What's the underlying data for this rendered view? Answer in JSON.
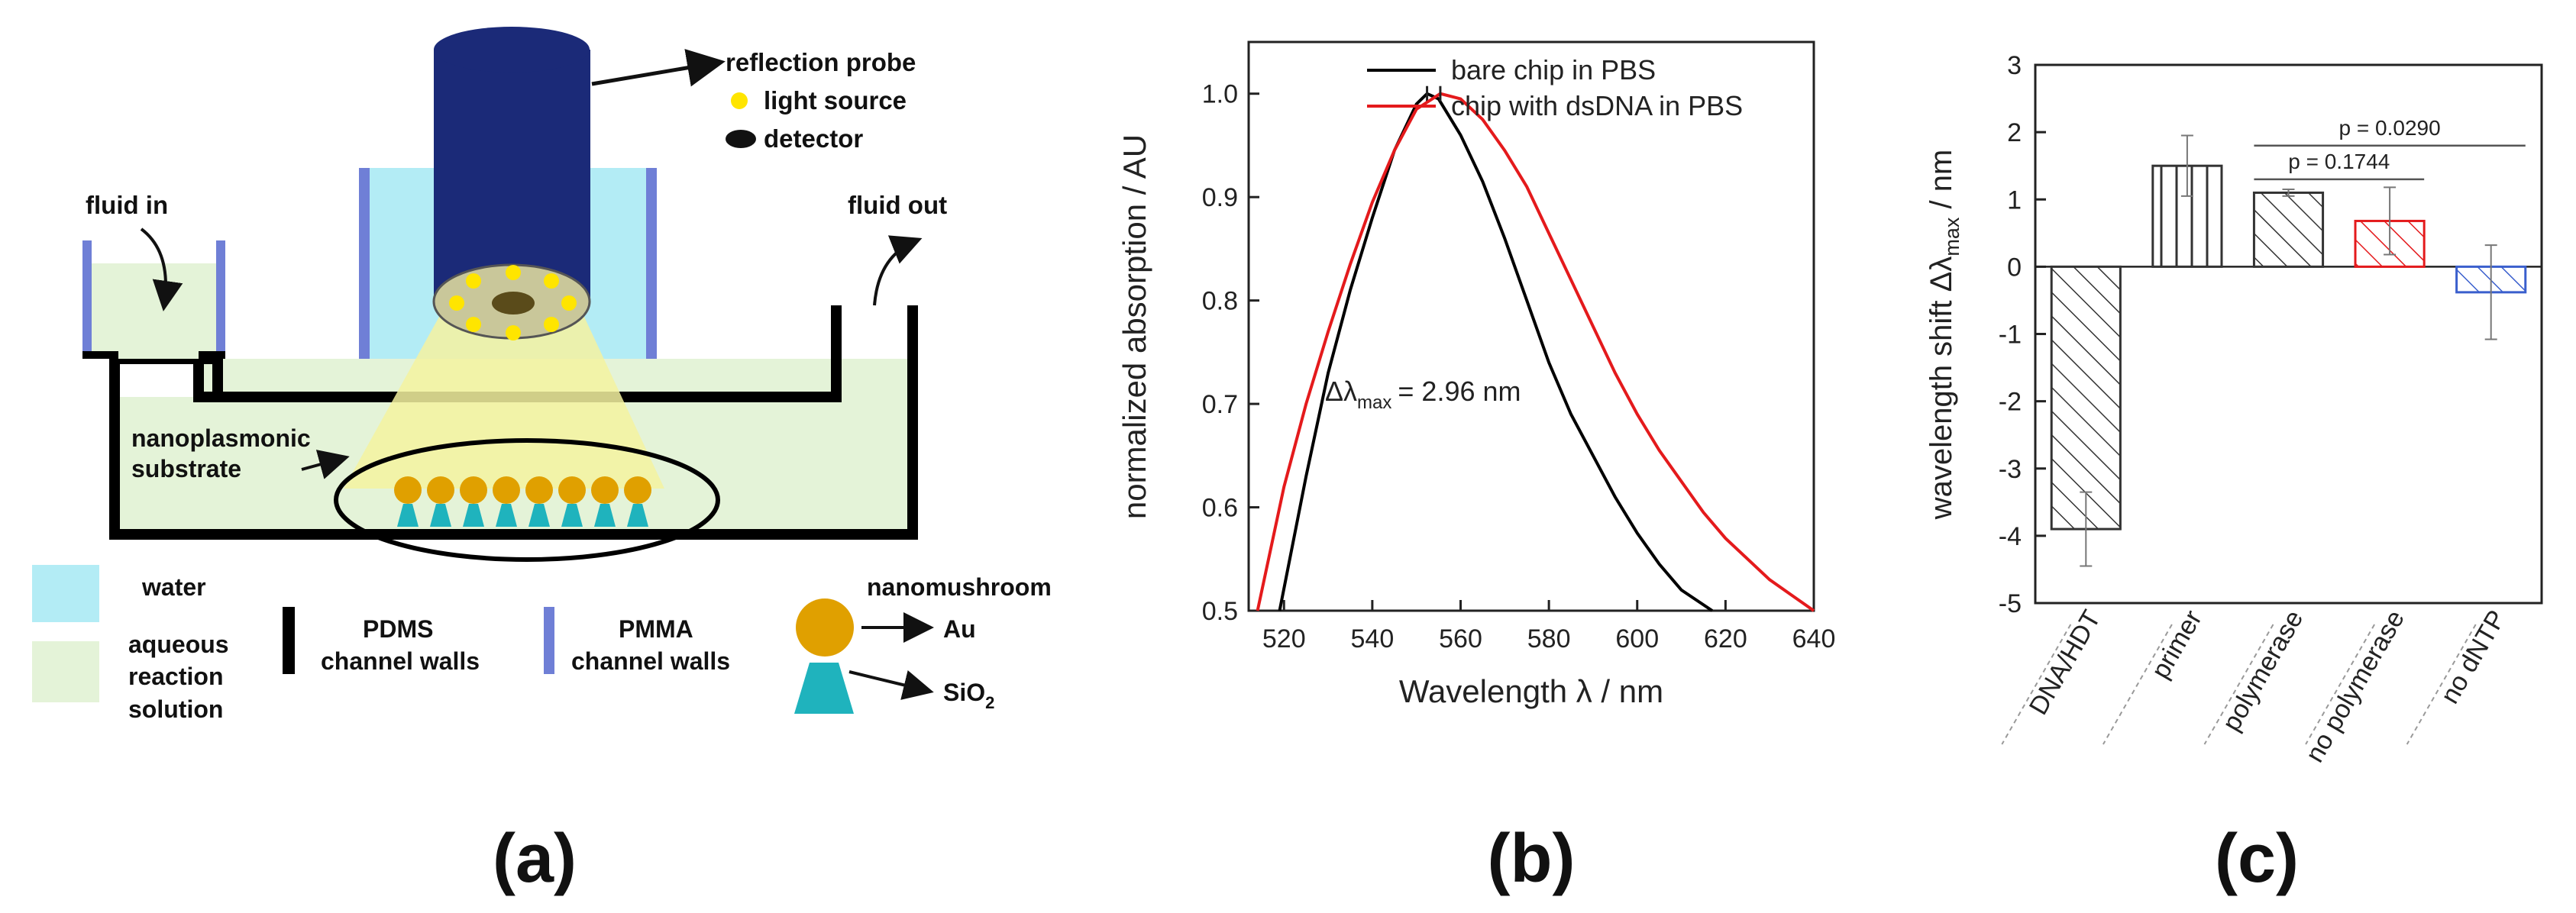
{
  "panel_a": {
    "caption": "(a)",
    "labels": {
      "reflection_probe": "reflection probe",
      "light_source": "light source",
      "detector": "detector",
      "fluid_in": "fluid in",
      "fluid_out": "fluid out",
      "substrate_line1": "nanoplasmonic",
      "substrate_line2": "substrate"
    },
    "legend": {
      "water": "water",
      "aqueous_1": "aqueous",
      "aqueous_2": "reaction",
      "aqueous_3": "solution",
      "pdms_1": "PDMS",
      "pdms_2": "channel walls",
      "pmma_1": "PMMA",
      "pmma_2": "channel walls",
      "nanomushroom": "nanomushroom",
      "au": "Au",
      "sio2": "SiO",
      "sio2_sub": "2"
    },
    "colors": {
      "water": "#b3ecf5",
      "solution": "#e4f3d8",
      "probe": "#1b2a78",
      "pmma": "#6f7fd6",
      "gold": "#e0a000",
      "teal": "#1fb3bd",
      "light": "#f5f2a0"
    }
  },
  "panel_b": {
    "caption": "(b)",
    "chart_data": {
      "type": "line",
      "xlabel": "Wavelength λ / nm",
      "ylabel": "normalized absorption / AU",
      "xlim": [
        512,
        640
      ],
      "ylim": [
        0.5,
        1.05
      ],
      "xticks": [
        520,
        540,
        560,
        580,
        600,
        620,
        640
      ],
      "yticks": [
        0.5,
        0.6,
        0.7,
        0.8,
        0.9,
        1.0
      ],
      "annotation": "Δλ",
      "annotation_sub": "max",
      "annotation_value": "= 2.96 nm",
      "series": [
        {
          "name": "bare chip in PBS",
          "color": "#000000",
          "x": [
            519,
            525,
            530,
            535,
            540,
            545,
            550,
            552.4,
            555,
            560,
            565,
            570,
            575,
            580,
            585,
            590,
            595,
            600,
            605,
            610,
            617
          ],
          "y": [
            0.5,
            0.63,
            0.73,
            0.81,
            0.88,
            0.945,
            0.99,
            1.0,
            0.995,
            0.96,
            0.915,
            0.86,
            0.8,
            0.74,
            0.69,
            0.65,
            0.61,
            0.575,
            0.545,
            0.52,
            0.5
          ]
        },
        {
          "name": "chip with dsDNA in PBS",
          "color": "#e41a1c",
          "x": [
            514,
            520,
            525,
            530,
            535,
            540,
            545,
            550,
            555.4,
            560,
            565,
            570,
            575,
            580,
            585,
            590,
            595,
            600,
            605,
            610,
            615,
            620,
            625,
            630,
            635,
            640
          ],
          "y": [
            0.5,
            0.62,
            0.7,
            0.77,
            0.835,
            0.895,
            0.945,
            0.985,
            1.0,
            0.995,
            0.975,
            0.945,
            0.91,
            0.865,
            0.82,
            0.775,
            0.73,
            0.69,
            0.655,
            0.625,
            0.595,
            0.57,
            0.55,
            0.53,
            0.515,
            0.5
          ]
        }
      ]
    }
  },
  "panel_c": {
    "caption": "(c)",
    "chart_data": {
      "type": "bar",
      "ylabel": "wavelength shift Δλ",
      "ylabel_sub": "max",
      "ylabel_suffix": " / nm",
      "ylim": [
        -5,
        3
      ],
      "yticks": [
        3,
        2,
        1,
        0,
        -1,
        -2,
        -3,
        -4,
        -5
      ],
      "categories": [
        "DNA/HDT",
        "primer",
        "polymerase",
        "no polymerase",
        "no dNTP"
      ],
      "values": [
        -3.9,
        1.5,
        1.1,
        0.68,
        -0.38
      ],
      "errors": [
        0.55,
        0.45,
        0.05,
        0.5,
        0.7
      ],
      "bar_colors": [
        "#333333",
        "#333333",
        "#333333",
        "#e41a1c",
        "#3a5fcd"
      ],
      "hatch": [
        "diag-back",
        "vertical",
        "diag-back",
        "diag-back",
        "diag-back"
      ],
      "pvalues": [
        {
          "label": "p = 0.1744",
          "from": 2,
          "to": 3
        },
        {
          "label": "p = 0.0290",
          "from": 2,
          "to": 4
        }
      ]
    }
  }
}
